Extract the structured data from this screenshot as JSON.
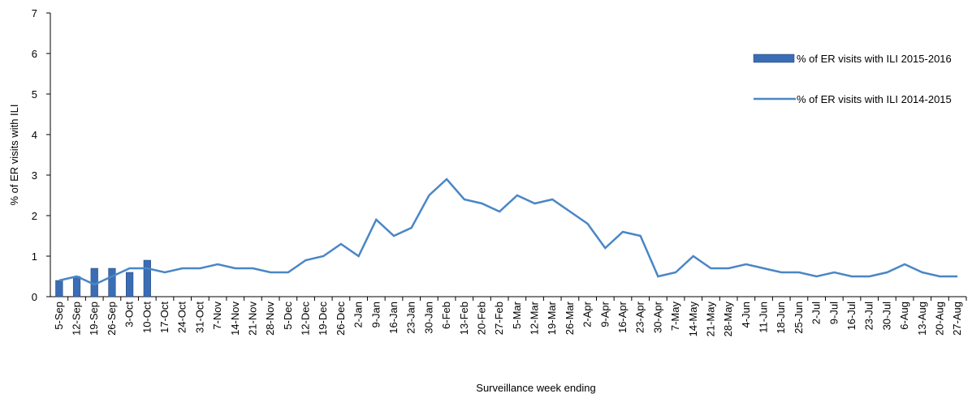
{
  "chart_data": {
    "type": "bar_line",
    "y_label": "% of ER visits with ILI",
    "x_label": "Surveillance week ending",
    "categories": [
      "5-Sep",
      "12-Sep",
      "19-Sep",
      "26-Sep",
      "3-Oct",
      "10-Oct",
      "17-Oct",
      "24-Oct",
      "31-Oct",
      "7-Nov",
      "14-Nov",
      "21-Nov",
      "28-Nov",
      "5-Dec",
      "12-Dec",
      "19-Dec",
      "26-Dec",
      "2-Jan",
      "9-Jan",
      "16-Jan",
      "23-Jan",
      "30-Jan",
      "6-Feb",
      "13-Feb",
      "20-Feb",
      "27-Feb",
      "5-Mar",
      "12-Mar",
      "19-Mar",
      "26-Mar",
      "2-Apr",
      "9-Apr",
      "16-Apr",
      "23-Apr",
      "30-Apr",
      "7-May",
      "14-May",
      "21-May",
      "28-May",
      "4-Jun",
      "11-Jun",
      "18-Jun",
      "25-Jun",
      "2-Jul",
      "9-Jul",
      "16-Jul",
      "23-Jul",
      "30-Jul",
      "6-Aug",
      "13-Aug",
      "20-Aug",
      "27-Aug"
    ],
    "series": [
      {
        "name": "% of ER visits with ILI 2015-2016",
        "type": "bar",
        "color": "#3a6db5",
        "values": [
          0.4,
          0.5,
          0.7,
          0.7,
          0.6,
          0.9,
          null,
          null,
          null,
          null,
          null,
          null,
          null,
          null,
          null,
          null,
          null,
          null,
          null,
          null,
          null,
          null,
          null,
          null,
          null,
          null,
          null,
          null,
          null,
          null,
          null,
          null,
          null,
          null,
          null,
          null,
          null,
          null,
          null,
          null,
          null,
          null,
          null,
          null,
          null,
          null,
          null,
          null,
          null,
          null,
          null,
          null
        ]
      },
      {
        "name": "% of ER visits with ILI 2014-2015",
        "type": "line",
        "color": "#4a86c6",
        "values": [
          0.4,
          0.5,
          0.3,
          0.5,
          0.7,
          0.7,
          0.6,
          0.7,
          0.7,
          0.8,
          0.7,
          0.7,
          0.6,
          0.6,
          0.9,
          1.0,
          1.3,
          1.0,
          1.9,
          1.5,
          1.7,
          2.5,
          2.9,
          2.4,
          2.3,
          2.1,
          2.5,
          2.3,
          2.4,
          2.1,
          1.8,
          1.2,
          1.6,
          1.5,
          0.5,
          0.6,
          1.0,
          0.7,
          0.7,
          0.8,
          0.7,
          0.6,
          0.6,
          0.5,
          0.6,
          0.5,
          0.5,
          0.6,
          0.8,
          0.6,
          0.5,
          0.5
        ]
      }
    ],
    "ylim": [
      0,
      7
    ],
    "yticks": [
      0,
      1,
      2,
      3,
      4,
      5,
      6,
      7
    ],
    "grid": false,
    "legend": "upper right"
  }
}
